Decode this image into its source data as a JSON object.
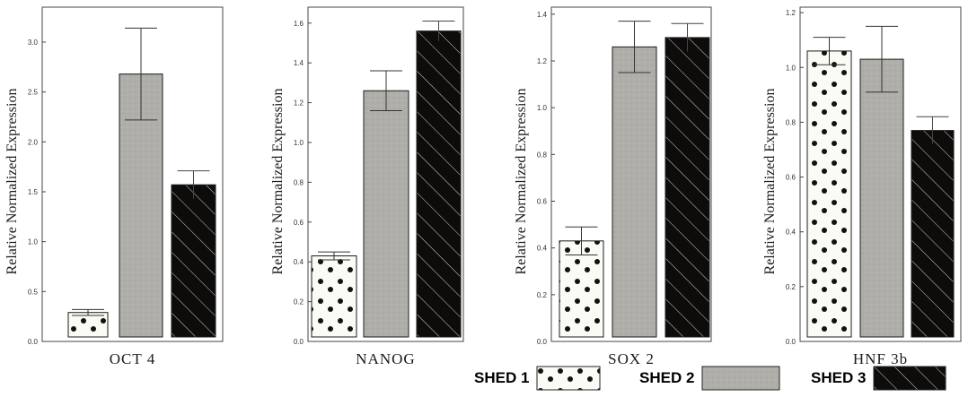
{
  "chart_data": [
    {
      "type": "bar",
      "categories": [
        "SHED 1",
        "SHED 2",
        "SHED 3"
      ],
      "values": [
        0.29,
        2.68,
        1.57
      ],
      "errors": [
        0.03,
        0.46,
        0.14
      ],
      "title": "",
      "xlabel": "OCT 4",
      "ylabel": "Relative Normalized Expression",
      "ylim": [
        0,
        3.35
      ],
      "yticks": [
        "0.0",
        "0.5",
        "1.0",
        "1.5",
        "2.0",
        "2.5",
        "3.0"
      ]
    },
    {
      "type": "bar",
      "categories": [
        "SHED 1",
        "SHED 2",
        "SHED 3"
      ],
      "values": [
        0.43,
        1.26,
        1.56
      ],
      "errors": [
        0.02,
        0.1,
        0.05
      ],
      "title": "",
      "xlabel": "NANOG",
      "ylabel": "Relative Normalized Expression",
      "ylim": [
        0,
        1.68
      ],
      "yticks": [
        "0.0",
        "0.2",
        "0.4",
        "0.6",
        "0.8",
        "1.0",
        "1.2",
        "1.4",
        "1.6"
      ]
    },
    {
      "type": "bar",
      "categories": [
        "SHED 1",
        "SHED 2",
        "SHED 3"
      ],
      "values": [
        0.43,
        1.26,
        1.3
      ],
      "errors": [
        0.06,
        0.11,
        0.06
      ],
      "title": "",
      "xlabel": "SOX 2",
      "ylabel": "Relative Normalized Expression",
      "ylim": [
        0,
        1.43
      ],
      "yticks": [
        "0.0",
        "0.2",
        "0.4",
        "0.6",
        "0.8",
        "1.0",
        "1.2",
        "1.4"
      ]
    },
    {
      "type": "bar",
      "categories": [
        "SHED 1",
        "SHED 2",
        "SHED 3"
      ],
      "values": [
        1.06,
        1.03,
        0.77
      ],
      "errors": [
        0.05,
        0.12,
        0.05
      ],
      "title": "",
      "xlabel": "HNF 3b",
      "ylabel": "Relative Normalized Expression",
      "ylim": [
        0,
        1.22
      ],
      "yticks": [
        "0.0",
        "0.2",
        "0.4",
        "0.6",
        "0.8",
        "1.0",
        "1.2"
      ]
    }
  ],
  "legend": {
    "items": [
      {
        "label": "SHED 1",
        "pattern": "dots",
        "color": "#fbfbf5"
      },
      {
        "label": "SHED 2",
        "pattern": "gray",
        "color": "#b0aea9"
      },
      {
        "label": "SHED 3",
        "pattern": "hatch",
        "color": "#0e0b0b"
      }
    ]
  },
  "colors": {
    "shed1_fill": "#fbfbf5",
    "shed2_fill": "#b0aea9",
    "shed3_fill": "#0e0b0b",
    "hatch_line": "#d8cfc5",
    "axis": "#444444",
    "text": "#1a1a1a"
  }
}
